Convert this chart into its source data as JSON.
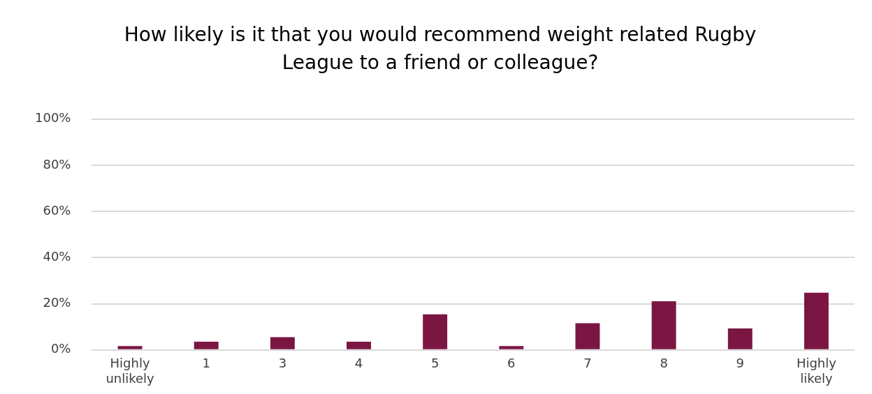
{
  "chart_data": {
    "type": "bar",
    "title": "How likely is it that you would recommend weight related Rugby League to a friend or colleague?",
    "categories": [
      "Highly unlikely",
      "1",
      "3",
      "4",
      "5",
      "6",
      "7",
      "8",
      "9",
      "Highly likely"
    ],
    "values": [
      1.7,
      3.6,
      5.5,
      3.6,
      15.4,
      1.7,
      11.6,
      21.1,
      9.3,
      24.8
    ],
    "color": "#7b1642",
    "ylim": [
      0,
      100
    ],
    "yticks": [
      {
        "value": 0,
        "label": "0%"
      },
      {
        "value": 20,
        "label": "20%"
      },
      {
        "value": 40,
        "label": "40%"
      },
      {
        "value": 60,
        "label": "60%"
      },
      {
        "value": 80,
        "label": "80%"
      },
      {
        "value": 100,
        "label": "100%"
      }
    ],
    "grid": "y",
    "legend": false
  }
}
